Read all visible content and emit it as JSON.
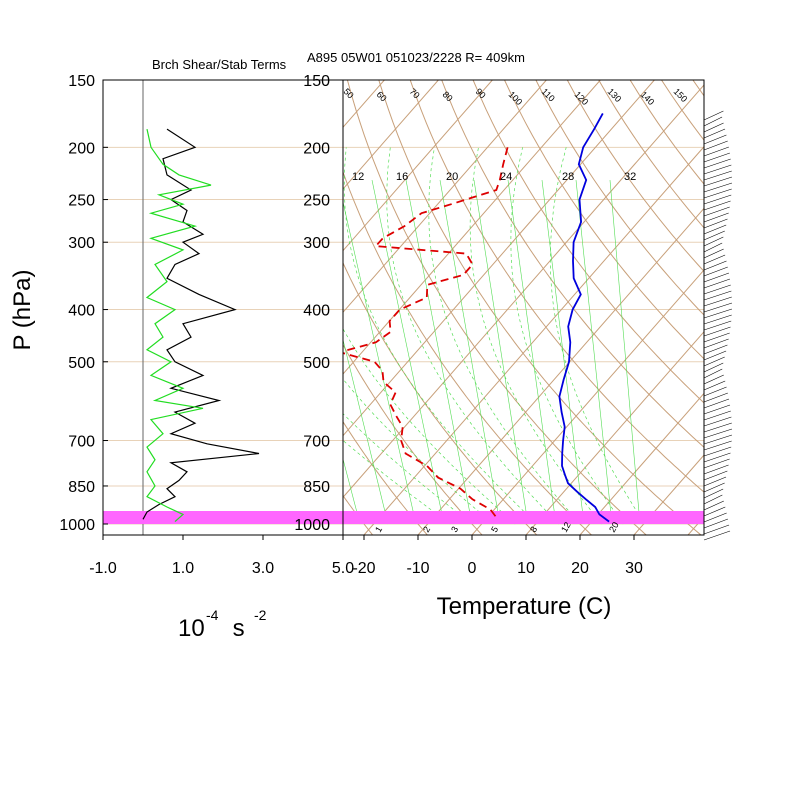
{
  "header": {
    "left_title": "Brch Shear/Stab Terms",
    "right_title": "A895 05W01 051023/2228 R= 409km"
  },
  "axes": {
    "pressure_label": "P (hPa)",
    "pressure_ticks": [
      150,
      200,
      250,
      300,
      400,
      500,
      700,
      850,
      1000
    ],
    "left_xticks": [
      "-1.0",
      "1.0",
      "3.0",
      "5.0"
    ],
    "left_xunit": {
      "base": "10",
      "exp1": "-4",
      "mid": " s ",
      "exp2": "-2"
    },
    "temp_label": "Temperature (C)",
    "temp_ticks": [
      -20,
      -10,
      0,
      10,
      20,
      30
    ],
    "mixing_ratio_labels": [
      12,
      16,
      20,
      24,
      28,
      32
    ],
    "mixing_ratio_bottom_labels": [
      1,
      2,
      3,
      5,
      8,
      12,
      20
    ],
    "theta_labels": [
      50,
      60,
      70,
      80,
      90,
      100,
      110,
      120,
      130,
      140,
      150
    ]
  },
  "colors": {
    "shear_line": "#000000",
    "stab_line": "#22dd22",
    "temperature": "#0000dd",
    "dewpoint": "#dd0000",
    "isotherm_grid": "#c8a07a",
    "mixing_ratio": "#55dd55",
    "boundary_layer_band": "#ff66ff",
    "pressure_grid": "#e8d2b8"
  },
  "chart_data": [
    {
      "type": "line",
      "title": "Brch Shear/Stab Terms",
      "xlabel": "10^-4 s^-2",
      "ylabel": "P (hPa)",
      "xlim": [
        -1.0,
        5.0
      ],
      "ylim": [
        1000,
        150
      ],
      "y_scale": "log",
      "series": [
        {
          "pressure": [
            185,
            200,
            210,
            225,
            240,
            250,
            262,
            275,
            290,
            300,
            315,
            330,
            350,
            375,
            400,
            425,
            450,
            475,
            500,
            530,
            560,
            590,
            620,
            650,
            680,
            710,
            740,
            770,
            800,
            830,
            860,
            890,
            920,
            950,
            980
          ],
          "values": [
            0.6,
            1.3,
            0.5,
            0.6,
            1.2,
            0.7,
            1.1,
            1.0,
            1.5,
            1.0,
            1.4,
            0.8,
            0.6,
            1.4,
            2.3,
            1.0,
            1.2,
            0.6,
            0.8,
            1.5,
            0.7,
            1.9,
            0.8,
            1.3,
            0.7,
            1.6,
            2.9,
            0.7,
            1.1,
            0.9,
            0.6,
            0.8,
            0.4,
            0.1,
            0.0
          ]
        },
        {
          "pressure": [
            185,
            200,
            215,
            225,
            235,
            245,
            255,
            265,
            280,
            295,
            310,
            330,
            355,
            380,
            400,
            425,
            450,
            475,
            500,
            530,
            560,
            590,
            610,
            640,
            680,
            720,
            760,
            800,
            850,
            890,
            930,
            960,
            990
          ],
          "values": [
            0.1,
            0.2,
            0.5,
            0.9,
            1.7,
            0.4,
            1.0,
            0.2,
            1.3,
            0.2,
            1.0,
            0.3,
            0.6,
            0.1,
            0.8,
            0.3,
            0.5,
            0.1,
            0.7,
            0.2,
            1.0,
            0.3,
            1.5,
            0.2,
            0.5,
            0.1,
            0.3,
            0.1,
            0.3,
            0.1,
            0.6,
            1.0,
            0.8
          ]
        }
      ]
    },
    {
      "type": "line",
      "title": "A895 05W01 051023/2228 R= 409km",
      "xlabel": "Temperature (C)",
      "ylabel": "P (hPa)",
      "xlim": [
        -25,
        40
      ],
      "ylim": [
        1000,
        150
      ],
      "y_scale": "log",
      "series": [
        {
          "pressure": [
            173,
            185,
            200,
            215,
            230,
            250,
            275,
            300,
            325,
            350,
            375,
            400,
            430,
            460,
            500,
            540,
            580,
            620,
            660,
            700,
            740,
            780,
            810,
            840,
            870,
            900,
            930,
            960,
            990
          ],
          "temperature": [
            -44,
            -43,
            -42,
            -40,
            -36,
            -34,
            -30,
            -28,
            -25,
            -22,
            -18,
            -17,
            -15,
            -12,
            -9,
            -7,
            -5,
            -2,
            1,
            3,
            5,
            7,
            9,
            11,
            14,
            17,
            20,
            22,
            25
          ]
        },
        {
          "pressure": [
            200,
            215,
            230,
            240,
            255,
            265,
            280,
            295,
            305,
            315,
            330,
            345,
            360,
            380,
            400,
            420,
            440,
            460,
            480,
            500,
            520,
            545,
            570,
            600,
            630,
            660,
            700,
            740,
            780,
            820,
            860,
            900,
            940,
            980
          ],
          "dewpoint": [
            -56,
            -54,
            -52,
            -51,
            -57,
            -61,
            -62,
            -64,
            -64,
            -46,
            -43,
            -43,
            -48,
            -46,
            -49,
            -49,
            -47,
            -48,
            -53,
            -45,
            -42,
            -40,
            -36,
            -35,
            -32,
            -29,
            -27,
            -24,
            -18,
            -14,
            -8,
            -4,
            1,
            4
          ]
        }
      ]
    }
  ]
}
